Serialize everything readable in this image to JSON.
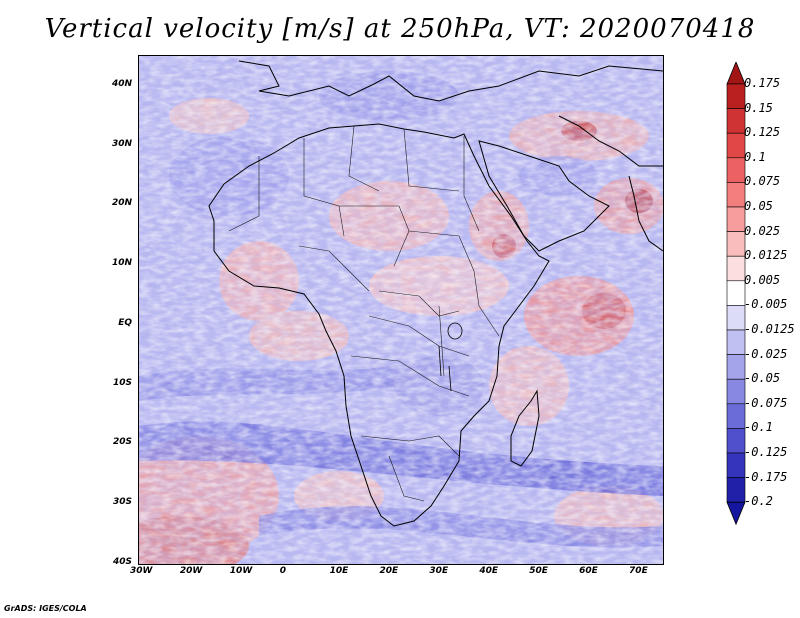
{
  "title": "Vertical velocity [m/s] at 250hPa, VT: 2020070418",
  "credit": "GrADS: IGES/COLA",
  "map": {
    "lon_range": [
      -30,
      75
    ],
    "lat_range": [
      -40,
      45
    ],
    "lat_labels": [
      "40N",
      "30N",
      "20N",
      "10N",
      "EQ",
      "10S",
      "20S",
      "30S",
      "40S"
    ],
    "lat_values": [
      40,
      30,
      20,
      10,
      0,
      -10,
      -20,
      -30,
      -40
    ],
    "lon_labels": [
      "30W",
      "20W",
      "10W",
      "0",
      "10E",
      "20E",
      "30E",
      "40E",
      "50E",
      "60E",
      "70E"
    ],
    "lon_values": [
      -30,
      -20,
      -10,
      0,
      10,
      20,
      30,
      40,
      50,
      60,
      70
    ],
    "field": "vertical velocity",
    "units": "m/s",
    "level": "250hPa",
    "valid_time": "2020070418"
  },
  "colorbar": {
    "labels": [
      "0.175",
      "0.15",
      "0.125",
      "0.1",
      "0.075",
      "0.05",
      "0.025",
      "0.0125",
      "0.005",
      "-0.005",
      "-0.0125",
      "-0.025",
      "-0.05",
      "-0.075",
      "-0.1",
      "-0.125",
      "-0.175",
      "-0.2"
    ],
    "colors": [
      "#a11515",
      "#bb2020",
      "#cf3333",
      "#e04747",
      "#ec6262",
      "#f37e7e",
      "#f79d9d",
      "#fabdbd",
      "#fddede",
      "#ffffff",
      "#dcdcf8",
      "#c0c0f2",
      "#a4a4ea",
      "#8888e2",
      "#6c6cd9",
      "#5050cc",
      "#3434bc",
      "#2020a8",
      "#1515a0"
    ]
  }
}
